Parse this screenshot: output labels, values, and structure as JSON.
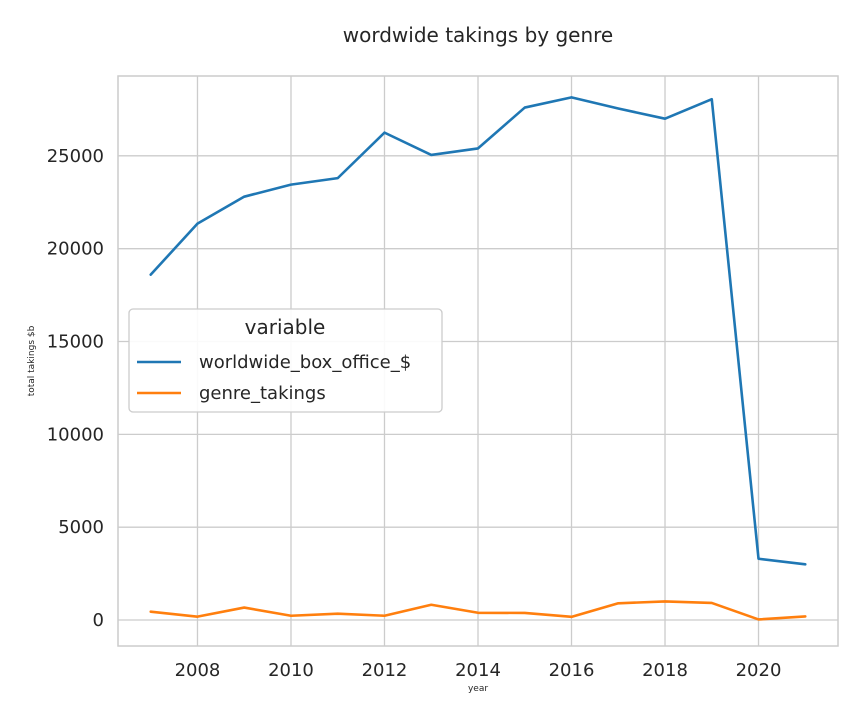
{
  "chart_data": {
    "type": "line",
    "title": "wordwide takings by genre",
    "xlabel": "year",
    "ylabel": "total takings $b",
    "xlim": [
      2006.3,
      2021.7
    ],
    "ylim": [
      -1400,
      29300
    ],
    "xticks": [
      2008,
      2010,
      2012,
      2014,
      2016,
      2018,
      2020
    ],
    "xtick_labels": [
      "2008",
      "2010",
      "2012",
      "2014",
      "2016",
      "2018",
      "2020"
    ],
    "yticks": [
      0,
      5000,
      10000,
      15000,
      20000,
      25000
    ],
    "ytick_labels": [
      "0",
      "5000",
      "10000",
      "15000",
      "20000",
      "25000"
    ],
    "grid": true,
    "legend": {
      "title": "variable",
      "placement": "center-left"
    },
    "x": [
      2007,
      2008,
      2009,
      2010,
      2011,
      2012,
      2013,
      2014,
      2015,
      2016,
      2017,
      2018,
      2019,
      2020,
      2021
    ],
    "series": [
      {
        "name": "worldwide_box_office_$",
        "color": "#1f77b4",
        "values": [
          18600,
          21350,
          22800,
          23450,
          23800,
          26250,
          25050,
          25400,
          27600,
          28150,
          27550,
          27000,
          28050,
          3300,
          3000
        ]
      },
      {
        "name": "genre_takings",
        "color": "#ff7f0e",
        "values": [
          450,
          180,
          670,
          230,
          340,
          230,
          820,
          390,
          380,
          170,
          900,
          1000,
          920,
          30,
          190
        ]
      }
    ]
  }
}
